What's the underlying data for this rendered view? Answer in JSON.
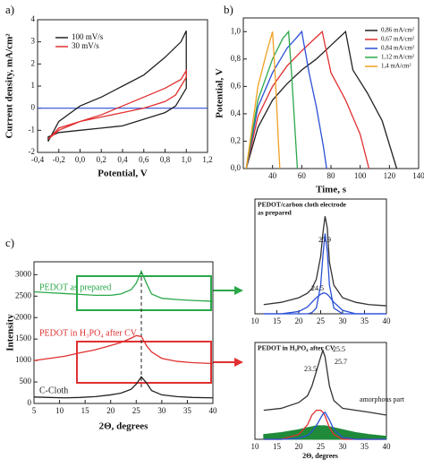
{
  "panel_labels": [
    "a)",
    "b)",
    "c)"
  ],
  "chart_data": [
    {
      "type": "line",
      "xlabel": "Potential, V",
      "ylabel": "Current density, mA/cm²",
      "xlim": [
        -0.4,
        1.2
      ],
      "ylim": [
        -2,
        4
      ],
      "xticks": [
        {
          "value": -0.4,
          "label": "-0,4"
        },
        {
          "value": -0.2,
          "label": "-0,2"
        },
        {
          "value": 0,
          "label": "0,0"
        },
        {
          "value": 0.2,
          "label": "0,2"
        },
        {
          "value": 0.4,
          "label": "0,4"
        },
        {
          "value": 0.6,
          "label": "0,6"
        },
        {
          "value": 0.8,
          "label": "0,8"
        },
        {
          "value": 1.0,
          "label": "1,0"
        },
        {
          "value": 1.2,
          "label": "1,2"
        }
      ],
      "yticks": [
        -2,
        -1,
        0,
        1,
        2,
        3,
        4
      ],
      "hline": {
        "value": 0,
        "color": "#2a4fd6"
      },
      "legend": true,
      "series": [
        {
          "name": "100 mV/s",
          "color": "#222222",
          "x": [
            -0.3,
            -0.2,
            0,
            0.2,
            0.4,
            0.6,
            0.8,
            0.95,
            1.0,
            1.0,
            0.9,
            0.8,
            0.6,
            0.4,
            0.2,
            0,
            -0.2,
            -0.3,
            -0.3
          ],
          "values": [
            -1.5,
            -0.6,
            0.1,
            0.5,
            1.0,
            1.5,
            2.3,
            3.0,
            3.5,
            0.9,
            0.1,
            -0.2,
            -0.5,
            -0.8,
            -0.9,
            -1.0,
            -1.1,
            -1.3,
            -1.5
          ]
        },
        {
          "name": "30 mV/s",
          "color": "#e03030",
          "x": [
            -0.3,
            -0.2,
            0,
            0.2,
            0.4,
            0.6,
            0.8,
            0.95,
            1.0,
            1.0,
            0.9,
            0.8,
            0.6,
            0.4,
            0.2,
            0,
            -0.2,
            -0.3
          ],
          "values": [
            -1.4,
            -1.0,
            -0.6,
            -0.3,
            0.1,
            0.5,
            0.9,
            1.3,
            1.7,
            1.4,
            0.6,
            0.3,
            0.0,
            -0.2,
            -0.4,
            -0.6,
            -0.9,
            -1.4
          ]
        }
      ]
    },
    {
      "type": "line",
      "xlabel": "Time, s",
      "ylabel": "Potential, V",
      "xlim": [
        20,
        140
      ],
      "ylim": [
        0,
        1.1
      ],
      "xticks": [
        40,
        60,
        80,
        100,
        120,
        140
      ],
      "yticks": [
        {
          "value": 0,
          "label": "0,0"
        },
        {
          "value": 0.2,
          "label": "0,2"
        },
        {
          "value": 0.4,
          "label": "0,4"
        },
        {
          "value": 0.6,
          "label": "0,6"
        },
        {
          "value": 0.8,
          "label": "0,8"
        },
        {
          "value": 1.0,
          "label": "1,0"
        }
      ],
      "legend": true,
      "series": [
        {
          "name": "0,86 mA/cm²",
          "color": "#222222",
          "x": [
            22,
            30,
            40,
            50,
            60,
            70,
            80,
            90,
            95,
            105,
            115,
            125
          ],
          "values": [
            0,
            0.3,
            0.5,
            0.62,
            0.72,
            0.8,
            0.9,
            1.0,
            0.72,
            0.55,
            0.35,
            0
          ]
        },
        {
          "name": "0,67 mA/cm²",
          "color": "#e03030",
          "x": [
            22,
            30,
            40,
            50,
            60,
            70,
            74,
            80,
            90,
            100,
            106
          ],
          "values": [
            0,
            0.38,
            0.6,
            0.75,
            0.86,
            0.96,
            1.0,
            0.7,
            0.5,
            0.25,
            0
          ]
        },
        {
          "name": "0,84 mA/cm²",
          "color": "#2a4fd6",
          "x": [
            22,
            30,
            40,
            50,
            56,
            60,
            65,
            70,
            75,
            77
          ],
          "values": [
            0,
            0.45,
            0.7,
            0.88,
            0.95,
            1.0,
            0.7,
            0.45,
            0.15,
            0
          ]
        },
        {
          "name": "1,12 mA/cm²",
          "color": "#2aa84a",
          "x": [
            22,
            30,
            40,
            47,
            51,
            53,
            55,
            57
          ],
          "values": [
            0,
            0.5,
            0.8,
            0.95,
            1.0,
            0.7,
            0.35,
            0
          ]
        },
        {
          "name": "1,4 mA/cm²",
          "color": "#f0a020",
          "x": [
            22,
            30,
            36,
            40,
            42,
            44,
            45
          ],
          "values": [
            0,
            0.6,
            0.85,
            1.0,
            0.65,
            0.2,
            0
          ]
        }
      ]
    },
    {
      "type": "line",
      "xlabel": "2Θ, degrees",
      "ylabel": "Intensity",
      "xlim": [
        5,
        40
      ],
      "ylim": [
        0,
        3300
      ],
      "xticks": [
        5,
        10,
        15,
        20,
        25,
        30,
        35,
        40
      ],
      "yticks": [
        0,
        500,
        1000,
        1500,
        2000,
        2500,
        3000
      ],
      "vline": {
        "value": 26,
        "dashed": true
      },
      "x": [
        5,
        8,
        11,
        14,
        17,
        20,
        22,
        24,
        25,
        26,
        27,
        28,
        30,
        33,
        36,
        40
      ],
      "series": [
        {
          "name": "PEDOT as prepared",
          "color": "#2aa84a",
          "values": [
            2600,
            2580,
            2560,
            2540,
            2520,
            2520,
            2550,
            2650,
            2800,
            3080,
            2800,
            2550,
            2450,
            2420,
            2400,
            2380
          ]
        },
        {
          "name": "PEDOT in H₃PO₄ after CV",
          "color": "#e03030",
          "values": [
            1000,
            1050,
            1100,
            1180,
            1250,
            1350,
            1420,
            1520,
            1580,
            1560,
            1350,
            1200,
            1050,
            980,
            950,
            930
          ]
        },
        {
          "name": "C-Cloth",
          "color": "#222222",
          "values": [
            150,
            140,
            130,
            140,
            160,
            200,
            240,
            330,
            450,
            620,
            480,
            300,
            200,
            160,
            140,
            130
          ]
        }
      ]
    },
    {
      "type": "line",
      "title": [
        "PEDOT/carbon cloth electrode",
        "as prepared"
      ],
      "xlim": [
        10,
        40
      ],
      "ylim": [
        0,
        100
      ],
      "xticks": [
        10,
        15,
        20,
        25,
        30,
        35,
        40
      ],
      "x": [
        12,
        16,
        20,
        22,
        23,
        24,
        25,
        25.5,
        26,
        26.5,
        27,
        28,
        30,
        33,
        36,
        40
      ],
      "annotations": [
        "25.9",
        "24.5"
      ],
      "series": [
        {
          "color": "#333333",
          "values": [
            8,
            10,
            14,
            18,
            22,
            30,
            50,
            70,
            85,
            75,
            45,
            25,
            14,
            10,
            8,
            7
          ]
        },
        {
          "color": "#2a4fd6",
          "values": [
            0,
            0,
            0,
            0,
            1,
            5,
            25,
            50,
            70,
            55,
            25,
            5,
            0,
            0,
            0,
            0
          ]
        },
        {
          "color": "#2a4fd6",
          "values": [
            0,
            0,
            2,
            6,
            10,
            14,
            17,
            18,
            18,
            17,
            15,
            10,
            3,
            0,
            0,
            0
          ]
        }
      ]
    },
    {
      "type": "line",
      "title": [
        "PEDOT in H₃PO₄ after CV"
      ],
      "xlabel": "2Θ, degrees",
      "xlim": [
        10,
        40
      ],
      "ylim": [
        0,
        100
      ],
      "xticks": [
        10,
        15,
        20,
        25,
        30,
        35,
        40
      ],
      "x": [
        12,
        16,
        20,
        22,
        23,
        24,
        25,
        25.5,
        26,
        27,
        28,
        30,
        33,
        36,
        40
      ],
      "annotations": [
        "25.5",
        "25.7",
        "23.5",
        "amorphous part"
      ],
      "series": [
        {
          "color": "#1f8a3a",
          "fill": true,
          "values": [
            5,
            7,
            10,
            12,
            13,
            14,
            14,
            14,
            14,
            13,
            12,
            10,
            7,
            5,
            3
          ]
        },
        {
          "color": "#333333",
          "values": [
            30,
            32,
            38,
            45,
            55,
            70,
            85,
            92,
            85,
            55,
            40,
            32,
            30,
            28,
            25
          ]
        },
        {
          "color": "#e03030",
          "values": [
            0,
            0,
            5,
            15,
            25,
            30,
            30,
            28,
            24,
            12,
            5,
            0,
            0,
            0,
            0
          ]
        },
        {
          "color": "#2a4fd6",
          "values": [
            0,
            0,
            1,
            4,
            8,
            14,
            22,
            26,
            28,
            20,
            10,
            2,
            0,
            0,
            0
          ]
        }
      ]
    }
  ]
}
